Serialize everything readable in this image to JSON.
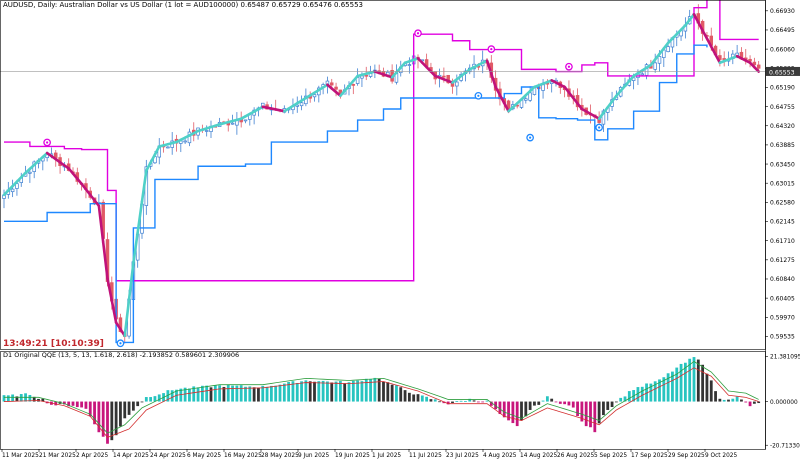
{
  "header": {
    "symbol_line": "AUDUSD, Daily:  Australian Dollar vs US Dollar (1 lot = AUD100000)  0.65487 0.65729 0.65476 0.65553"
  },
  "timer": "13:49:21 [10:10:39]",
  "subwindow": {
    "title": "D1 Original QQE (13, 5, 13, 1.618, 2.618) -2.193852 0.589601 2.309906"
  },
  "colors": {
    "bull_bar": "#3d7fd1",
    "bear_bar": "#e05a66",
    "rising_line": "#4fd0c8",
    "falling_line": "#c0127a",
    "upper_band": "#e000e0",
    "lower_band": "#1e88ff",
    "hist_up": "#27c4c0",
    "hist_down": "#c8167c",
    "hist_neutral": "#333333",
    "signal_red": "#d32f2f",
    "signal_green": "#2e9e3e",
    "price_marker": "#3a3a3a"
  },
  "chart_data": [
    {
      "type": "candlestick",
      "series_name": "AUDUSD Daily",
      "y_ticks": [
        "0.66930",
        "0.66495",
        "0.66060",
        "0.65625",
        "0.65553",
        "0.65190",
        "0.64755",
        "0.64320",
        "0.63885",
        "0.63450",
        "0.63015",
        "0.62580",
        "0.62145",
        "0.61710",
        "0.61275",
        "0.60840",
        "0.60405",
        "0.59970",
        "0.59535"
      ],
      "current_price": "0.65553",
      "ylim": [
        0.5925,
        0.6713
      ],
      "close_path": [
        [
          0,
          0.6275
        ],
        [
          5,
          0.6325
        ],
        [
          10,
          0.637
        ],
        [
          15,
          0.6335
        ],
        [
          18,
          0.63
        ],
        [
          22,
          0.625
        ],
        [
          24,
          0.6085
        ],
        [
          26,
          0.5985
        ],
        [
          28,
          0.5955
        ],
        [
          30,
          0.612
        ],
        [
          33,
          0.633
        ],
        [
          36,
          0.6385
        ],
        [
          40,
          0.6395
        ],
        [
          45,
          0.642
        ],
        [
          50,
          0.6435
        ],
        [
          55,
          0.6448
        ],
        [
          60,
          0.6475
        ],
        [
          65,
          0.6465
        ],
        [
          70,
          0.6495
        ],
        [
          75,
          0.6525
        ],
        [
          78,
          0.65
        ],
        [
          82,
          0.6545
        ],
        [
          86,
          0.6555
        ],
        [
          90,
          0.6542
        ],
        [
          93,
          0.6575
        ],
        [
          96,
          0.6585
        ],
        [
          100,
          0.6545
        ],
        [
          104,
          0.653
        ],
        [
          108,
          0.656
        ],
        [
          112,
          0.658
        ],
        [
          114,
          0.652
        ],
        [
          117,
          0.6465
        ],
        [
          120,
          0.6492
        ],
        [
          123,
          0.652
        ],
        [
          127,
          0.6535
        ],
        [
          130,
          0.652
        ],
        [
          134,
          0.647
        ],
        [
          138,
          0.6448
        ],
        [
          142,
          0.65
        ],
        [
          146,
          0.6545
        ],
        [
          150,
          0.657
        ],
        [
          154,
          0.662
        ],
        [
          158,
          0.666
        ],
        [
          160,
          0.6685
        ],
        [
          163,
          0.663
        ],
        [
          166,
          0.6575
        ],
        [
          170,
          0.659
        ],
        [
          173,
          0.6575
        ],
        [
          175,
          0.6555
        ]
      ],
      "supertrend_upper": [
        [
          0,
          0.6395
        ],
        [
          6,
          0.6385
        ],
        [
          14,
          0.638
        ],
        [
          18,
          0.6378
        ],
        [
          24,
          0.6285
        ],
        [
          26,
          0.608
        ],
        [
          60,
          0.608
        ],
        [
          90,
          0.608
        ],
        [
          95,
          0.664
        ],
        [
          104,
          0.6625
        ],
        [
          108,
          0.6605
        ],
        [
          112,
          0.6605
        ],
        [
          113,
          0.6605
        ],
        [
          120,
          0.656
        ],
        [
          128,
          0.6555
        ],
        [
          134,
          0.657
        ],
        [
          137,
          0.6575
        ],
        [
          140,
          0.6545
        ],
        [
          160,
          0.67
        ],
        [
          163,
          0.6725
        ],
        [
          166,
          0.6628
        ],
        [
          175,
          0.6628
        ]
      ],
      "supertrend_lower": [
        [
          0,
          0.6215
        ],
        [
          10,
          0.6235
        ],
        [
          20,
          0.6255
        ],
        [
          25,
          0.6255
        ],
        [
          26,
          0.594
        ],
        [
          27,
          0.594
        ],
        [
          30,
          0.62
        ],
        [
          35,
          0.631
        ],
        [
          45,
          0.634
        ],
        [
          56,
          0.6345
        ],
        [
          62,
          0.6395
        ],
        [
          75,
          0.642
        ],
        [
          82,
          0.6445
        ],
        [
          88,
          0.647
        ],
        [
          92,
          0.6495
        ],
        [
          113,
          0.6495
        ],
        [
          116,
          0.6505
        ],
        [
          120,
          0.652
        ],
        [
          124,
          0.645
        ],
        [
          128,
          0.6448
        ],
        [
          133,
          0.6445
        ],
        [
          137,
          0.64
        ],
        [
          140,
          0.6425
        ],
        [
          146,
          0.6465
        ],
        [
          152,
          0.653
        ],
        [
          156,
          0.6595
        ],
        [
          160,
          0.6615
        ],
        [
          163,
          0.661
        ]
      ],
      "signal_dots": [
        {
          "x": 10,
          "y": 0.6394,
          "kind": "upper"
        },
        {
          "x": 27,
          "y": 0.5938,
          "kind": "lower"
        },
        {
          "x": 96,
          "y": 0.6642,
          "kind": "upper"
        },
        {
          "x": 113,
          "y": 0.6606,
          "kind": "upper"
        },
        {
          "x": 110,
          "y": 0.65,
          "kind": "lower"
        },
        {
          "x": 122,
          "y": 0.6405,
          "kind": "lower"
        },
        {
          "x": 131,
          "y": 0.6566,
          "kind": "upper"
        },
        {
          "x": 138,
          "y": 0.6428,
          "kind": "lower"
        }
      ]
    },
    {
      "type": "histogram",
      "series_name": "QQE",
      "y_ticks": [
        "21.381095",
        "0.000000",
        "-20.713300"
      ],
      "ylim": [
        -22.5,
        23.5
      ],
      "hist_path": [
        [
          0,
          2.5
        ],
        [
          6,
          3.5
        ],
        [
          9,
          1.0
        ],
        [
          11,
          -1.5
        ],
        [
          16,
          -1.8
        ],
        [
          19,
          -3.5
        ],
        [
          22,
          -14
        ],
        [
          24,
          -20
        ],
        [
          26,
          -16
        ],
        [
          28,
          -8
        ],
        [
          31,
          -2
        ],
        [
          33,
          2
        ],
        [
          40,
          6
        ],
        [
          50,
          7.5
        ],
        [
          60,
          7
        ],
        [
          70,
          10
        ],
        [
          80,
          9
        ],
        [
          86,
          11.5
        ],
        [
          90,
          8
        ],
        [
          96,
          3
        ],
        [
          103,
          -1
        ],
        [
          108,
          1
        ],
        [
          112,
          0
        ],
        [
          116,
          -8
        ],
        [
          119,
          -12
        ],
        [
          122,
          -4
        ],
        [
          126,
          2
        ],
        [
          132,
          -3
        ],
        [
          134,
          -10
        ],
        [
          137,
          -14
        ],
        [
          139,
          -6
        ],
        [
          142,
          0
        ],
        [
          146,
          6
        ],
        [
          152,
          10
        ],
        [
          156,
          16
        ],
        [
          160,
          21
        ],
        [
          162,
          18
        ],
        [
          166,
          1
        ],
        [
          170,
          2
        ],
        [
          173,
          -2
        ],
        [
          175,
          -1
        ]
      ],
      "signal_path": [
        [
          0,
          2
        ],
        [
          8,
          2
        ],
        [
          14,
          -1
        ],
        [
          20,
          -6
        ],
        [
          24,
          -15
        ],
        [
          28,
          -11
        ],
        [
          32,
          -3
        ],
        [
          40,
          5
        ],
        [
          50,
          8
        ],
        [
          60,
          8
        ],
        [
          70,
          11
        ],
        [
          80,
          10
        ],
        [
          88,
          11
        ],
        [
          96,
          6
        ],
        [
          103,
          1
        ],
        [
          112,
          1
        ],
        [
          116,
          -5
        ],
        [
          120,
          -8
        ],
        [
          126,
          -1
        ],
        [
          134,
          -6
        ],
        [
          138,
          -9
        ],
        [
          142,
          -2
        ],
        [
          148,
          5
        ],
        [
          156,
          13
        ],
        [
          160,
          19
        ],
        [
          164,
          14
        ],
        [
          168,
          5
        ],
        [
          172,
          4
        ],
        [
          175,
          1
        ]
      ],
      "slow_path": [
        [
          0,
          0
        ],
        [
          8,
          0.5
        ],
        [
          14,
          -2
        ],
        [
          20,
          -7
        ],
        [
          24,
          -17
        ],
        [
          29,
          -13
        ],
        [
          33,
          -4
        ],
        [
          40,
          3
        ],
        [
          50,
          6
        ],
        [
          60,
          6.5
        ],
        [
          70,
          9
        ],
        [
          80,
          8.5
        ],
        [
          88,
          9.5
        ],
        [
          96,
          5
        ],
        [
          103,
          -1
        ],
        [
          112,
          -1
        ],
        [
          116,
          -7
        ],
        [
          120,
          -9
        ],
        [
          126,
          -3
        ],
        [
          134,
          -8
        ],
        [
          138,
          -11
        ],
        [
          142,
          -4
        ],
        [
          148,
          3
        ],
        [
          156,
          11
        ],
        [
          160,
          16
        ],
        [
          164,
          12
        ],
        [
          168,
          3
        ],
        [
          172,
          2
        ],
        [
          175,
          0
        ]
      ]
    }
  ],
  "x_labels": [
    "11 Mar 2025",
    "21 Mar 2025",
    "2 Apr 2025",
    "14 Apr 2025",
    "24 Apr 2025",
    "6 May 2025",
    "16 May 2025",
    "28 May 2025",
    "9 Jun 2025",
    "19 Jun 2025",
    "1 Jul 2025",
    "11 Jul 2025",
    "23 Jul 2025",
    "4 Aug 2025",
    "14 Aug 2025",
    "26 Aug 2025",
    "5 Sep 2025",
    "17 Sep 2025",
    "29 Sep 2025",
    "9 Oct 2025"
  ]
}
